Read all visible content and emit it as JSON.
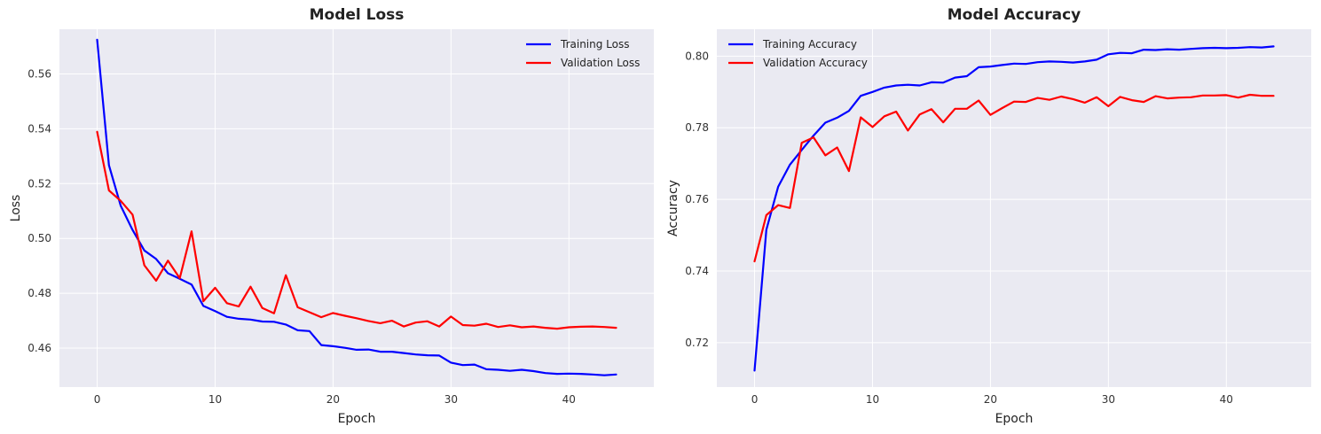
{
  "chart_data": [
    {
      "type": "line",
      "title": "Model Loss",
      "xlabel": "Epoch",
      "ylabel": "Loss",
      "xlim": [
        -3.2,
        47.2
      ],
      "ylim": [
        0.4458,
        0.5763
      ],
      "xticks": [
        0,
        10,
        20,
        30,
        40
      ],
      "yticks": [
        0.46,
        0.48,
        0.5,
        0.52,
        0.54,
        0.56
      ],
      "ytick_decimals": 2,
      "grid": true,
      "legend": "upper right",
      "x": [
        0,
        1,
        2,
        3,
        4,
        5,
        6,
        7,
        8,
        9,
        10,
        11,
        12,
        13,
        14,
        15,
        16,
        17,
        18,
        19,
        20,
        21,
        22,
        23,
        24,
        25,
        26,
        27,
        28,
        29,
        30,
        31,
        32,
        33,
        34,
        35,
        36,
        37,
        38,
        39,
        40,
        41,
        42,
        43,
        44
      ],
      "series": [
        {
          "name": "Training Loss",
          "color": "#0000ff",
          "values": [
            0.5725,
            0.5267,
            0.5119,
            0.5031,
            0.4956,
            0.4925,
            0.4873,
            0.4853,
            0.4832,
            0.4754,
            0.4735,
            0.4714,
            0.4707,
            0.4704,
            0.4697,
            0.4696,
            0.4686,
            0.4665,
            0.4662,
            0.4611,
            0.4607,
            0.4601,
            0.4594,
            0.4595,
            0.4587,
            0.4587,
            0.4582,
            0.4577,
            0.4574,
            0.4573,
            0.4547,
            0.4538,
            0.454,
            0.4523,
            0.4521,
            0.4517,
            0.4521,
            0.4516,
            0.4509,
            0.4506,
            0.4507,
            0.4506,
            0.4504,
            0.4501,
            0.4504
          ]
        },
        {
          "name": "Validation Loss",
          "color": "#ff0000",
          "values": [
            0.5389,
            0.5175,
            0.5137,
            0.5087,
            0.4902,
            0.4846,
            0.4919,
            0.4855,
            0.5026,
            0.4771,
            0.482,
            0.4764,
            0.4752,
            0.4824,
            0.4746,
            0.4727,
            0.4866,
            0.4749,
            0.4731,
            0.4713,
            0.4728,
            0.4718,
            0.4709,
            0.4699,
            0.4691,
            0.47,
            0.4679,
            0.4693,
            0.4698,
            0.4679,
            0.4715,
            0.4684,
            0.4682,
            0.4689,
            0.4677,
            0.4683,
            0.4676,
            0.4679,
            0.4674,
            0.4671,
            0.4676,
            0.4678,
            0.4679,
            0.4677,
            0.4674
          ]
        }
      ]
    },
    {
      "type": "line",
      "title": "Model Accuracy",
      "xlabel": "Epoch",
      "ylabel": "Accuracy",
      "xlim": [
        -3.2,
        47.2
      ],
      "ylim": [
        0.7076,
        0.8075
      ],
      "xticks": [
        0,
        10,
        20,
        30,
        40
      ],
      "yticks": [
        0.72,
        0.74,
        0.76,
        0.78,
        0.8
      ],
      "ytick_decimals": 2,
      "grid": true,
      "legend": "upper left",
      "x": [
        0,
        1,
        2,
        3,
        4,
        5,
        6,
        7,
        8,
        9,
        10,
        11,
        12,
        13,
        14,
        15,
        16,
        17,
        18,
        19,
        20,
        21,
        22,
        23,
        24,
        25,
        26,
        27,
        28,
        29,
        30,
        31,
        32,
        33,
        34,
        35,
        36,
        37,
        38,
        39,
        40,
        41,
        42,
        43,
        44
      ],
      "series": [
        {
          "name": "Training Accuracy",
          "color": "#0000ff",
          "values": [
            0.7122,
            0.7515,
            0.7635,
            0.7697,
            0.7738,
            0.7778,
            0.7814,
            0.7828,
            0.7847,
            0.7889,
            0.79,
            0.7912,
            0.7918,
            0.792,
            0.7918,
            0.7927,
            0.7926,
            0.794,
            0.7944,
            0.7969,
            0.7971,
            0.7975,
            0.7979,
            0.7978,
            0.7983,
            0.7985,
            0.7984,
            0.7982,
            0.7985,
            0.799,
            0.8005,
            0.8009,
            0.8008,
            0.8018,
            0.8017,
            0.8019,
            0.8018,
            0.802,
            0.8022,
            0.8023,
            0.8022,
            0.8023,
            0.8025,
            0.8024,
            0.8027
          ]
        },
        {
          "name": "Validation Accuracy",
          "color": "#ff0000",
          "values": [
            0.7427,
            0.7556,
            0.7584,
            0.7576,
            0.7758,
            0.7773,
            0.7723,
            0.7745,
            0.7679,
            0.7829,
            0.7802,
            0.7832,
            0.7845,
            0.7792,
            0.7837,
            0.7852,
            0.7815,
            0.7853,
            0.7853,
            0.7876,
            0.7836,
            0.7855,
            0.7873,
            0.7872,
            0.7883,
            0.7878,
            0.7887,
            0.788,
            0.787,
            0.7885,
            0.786,
            0.7886,
            0.7877,
            0.7872,
            0.7888,
            0.7882,
            0.7884,
            0.7885,
            0.789,
            0.789,
            0.7891,
            0.7884,
            0.7892,
            0.7889,
            0.7889
          ]
        }
      ]
    }
  ]
}
